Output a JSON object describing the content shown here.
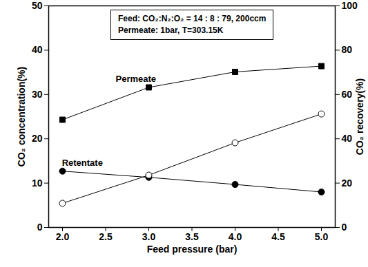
{
  "chart_data": {
    "type": "line",
    "box_text": [
      "Feed: CO₂:N₂:O₂ = 14 : 8 : 79, 200ccm",
      "Permeate: 1bar, T=303.15K"
    ],
    "x_label": "Feed pressure (bar)",
    "y_label": "CO₂ concentration(%)",
    "y2_label": "CO₂ recovery(%)",
    "x": [
      2.0,
      3.0,
      4.0,
      5.0
    ],
    "xlim": [
      1.84,
      5.16
    ],
    "xticks": [
      {
        "value": 2.0,
        "label": "2.0"
      },
      {
        "value": 2.5,
        "label": "2.5"
      },
      {
        "value": 3.0,
        "label": "3.0"
      },
      {
        "value": 3.5,
        "label": "3.5"
      },
      {
        "value": 4.0,
        "label": "4.0"
      },
      {
        "value": 4.5,
        "label": "4.5"
      },
      {
        "value": 5.0,
        "label": "5.0"
      }
    ],
    "ylim": [
      0,
      50
    ],
    "yticks": [
      0,
      10,
      20,
      30,
      40,
      50
    ],
    "y2lim": [
      0,
      100
    ],
    "y2ticks": [
      0,
      20,
      40,
      60,
      80,
      100
    ],
    "series": [
      {
        "name": "Permeate",
        "color": "#000000",
        "marker": "square",
        "values": [
          24.3,
          31.6,
          35.1,
          36.4
        ]
      },
      {
        "name": "Retentate",
        "color": "#000000",
        "marker": "circle",
        "values": [
          12.7,
          11.3,
          9.7,
          8.0
        ]
      },
      {
        "name": "CO₂ recovery",
        "color": "#000000",
        "marker": "open-circle",
        "axis": "y2",
        "values": [
          10.9,
          23.6,
          38.2,
          51.2
        ]
      }
    ],
    "annotations": [
      {
        "text": "Permeate",
        "x": 2.85,
        "y": 33.5
      },
      {
        "text": "Retentate",
        "x": 2.23,
        "y": 14.6
      }
    ]
  }
}
